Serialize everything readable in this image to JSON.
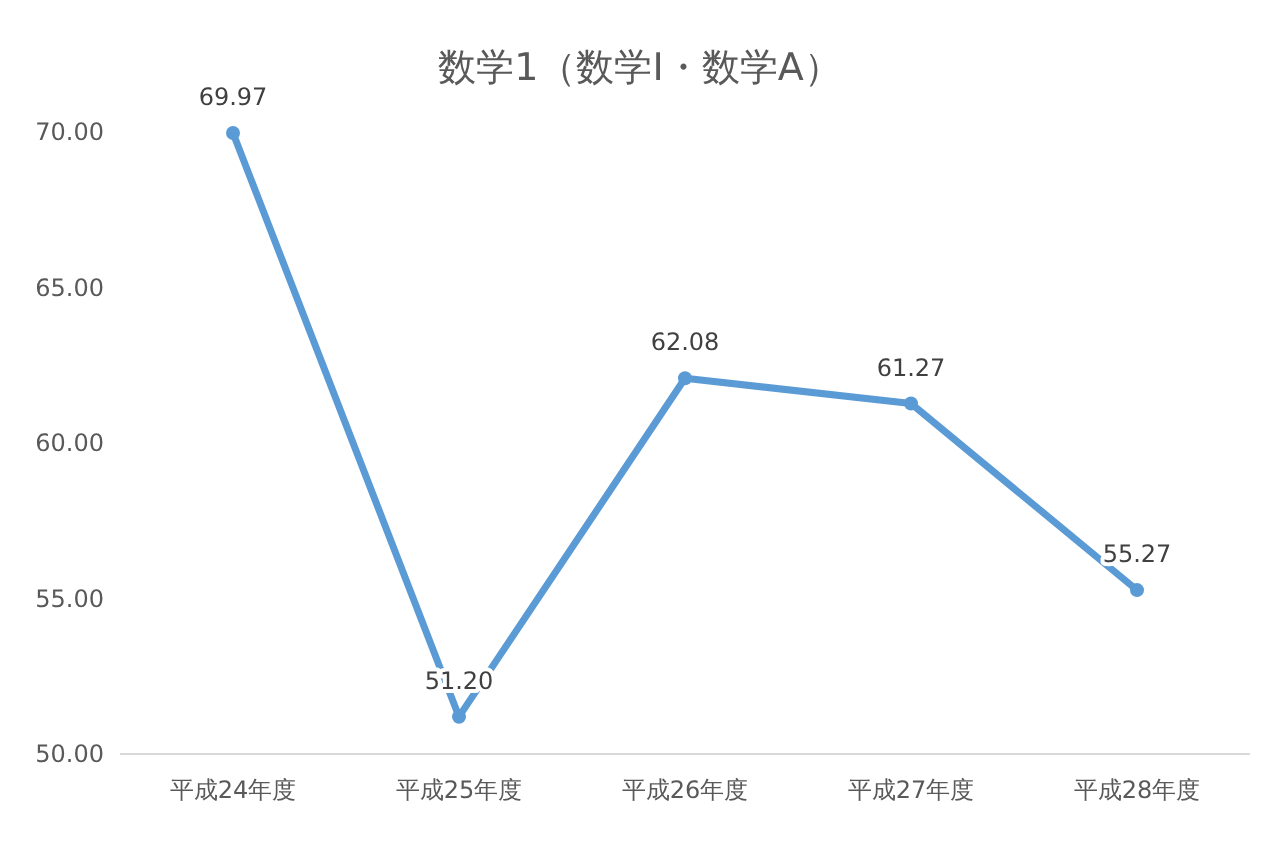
{
  "chart_data": {
    "type": "line",
    "title": "数学1（数学I・数学A）",
    "categories": [
      "平成24年度",
      "平成25年度",
      "平成26年度",
      "平成27年度",
      "平成28年度"
    ],
    "values": [
      69.97,
      51.2,
      62.08,
      61.27,
      55.27
    ],
    "value_labels": [
      "69.97",
      "51.20",
      "62.08",
      "61.27",
      "55.27"
    ],
    "color": "#5b9bd5",
    "marker": "circle",
    "ylim": [
      50,
      70
    ],
    "yticks": [
      {
        "value": 50,
        "label": "50.00"
      },
      {
        "value": 55,
        "label": "55.00"
      },
      {
        "value": 60,
        "label": "60.00"
      },
      {
        "value": 65,
        "label": "65.00"
      },
      {
        "value": 70,
        "label": "70.00"
      }
    ]
  }
}
